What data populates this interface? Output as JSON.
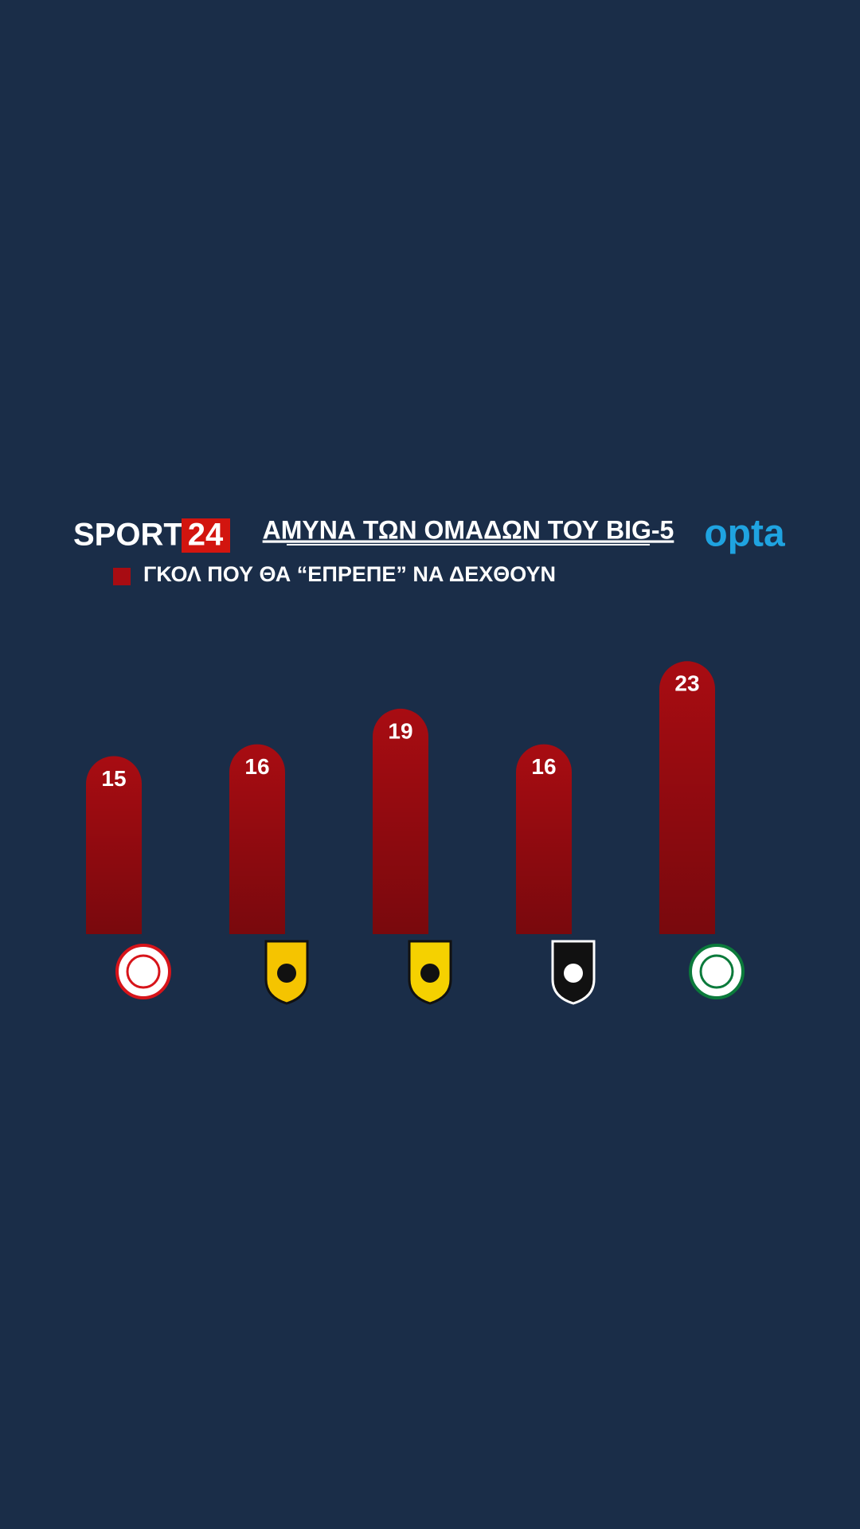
{
  "header": {
    "brand": "SPORT",
    "brand_number": "24",
    "source_logo": "opta"
  },
  "chart_data": {
    "type": "bar",
    "title": "ΑΜΥΝΑ ΤΩΝ ΟΜΑΔΩΝ ΤΟΥ BIG-5",
    "categories": [
      null,
      null,
      null,
      null,
      null
    ],
    "series": [
      {
        "name": "ΓΚΟΛ ΠΟΥ ΘΑ “ΕΠΡΕΠΕ” ΝΑ ΔΕΧΘΟΥΝ",
        "color": "#a80c12",
        "values": [
          15,
          16,
          19,
          16,
          23
        ]
      }
    ]
  }
}
